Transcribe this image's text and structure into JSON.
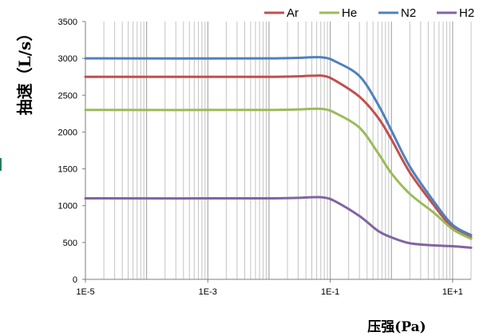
{
  "chart_data": {
    "type": "line",
    "title": "",
    "xlabel": "压强(Pa)",
    "ylabel": "抽速（L/s）",
    "x_scale": "log",
    "xlim": [
      1e-05,
      20
    ],
    "ylim": [
      0,
      3500
    ],
    "x_tick_values": [
      1e-05,
      0.001,
      0.1,
      10
    ],
    "x_tick_labels": [
      "1E-5",
      "1E-3",
      "1E-1",
      "1E+1"
    ],
    "y_ticks": [
      0,
      500,
      1000,
      1500,
      2000,
      2500,
      3000,
      3500
    ],
    "grid": "vertical log minor and major lines",
    "legend_position": "top-right",
    "series": [
      {
        "name": "Ar",
        "color": "#c0504d",
        "x": [
          1e-05,
          0.01,
          0.05,
          0.08,
          0.12,
          0.3,
          0.6,
          1,
          2,
          5,
          10,
          20
        ],
        "y": [
          2750,
          2750,
          2765,
          2760,
          2700,
          2480,
          2200,
          1900,
          1450,
          1000,
          700,
          570
        ]
      },
      {
        "name": "He",
        "color": "#9bbb59",
        "x": [
          1e-05,
          0.01,
          0.05,
          0.08,
          0.12,
          0.3,
          0.6,
          1,
          2,
          5,
          10,
          20
        ],
        "y": [
          2300,
          2300,
          2315,
          2310,
          2260,
          2060,
          1720,
          1440,
          1160,
          900,
          680,
          550
        ]
      },
      {
        "name": "N2",
        "color": "#4f81bd",
        "x": [
          1e-05,
          0.01,
          0.05,
          0.08,
          0.12,
          0.3,
          0.6,
          1,
          2,
          5,
          10,
          20
        ],
        "y": [
          3000,
          3000,
          3015,
          3010,
          2960,
          2760,
          2380,
          2020,
          1530,
          1050,
          740,
          600
        ]
      },
      {
        "name": "H2",
        "color": "#8064a2",
        "x": [
          1e-05,
          0.01,
          0.05,
          0.08,
          0.12,
          0.3,
          0.6,
          1,
          2,
          5,
          10,
          20
        ],
        "y": [
          1100,
          1100,
          1115,
          1110,
          1060,
          860,
          660,
          570,
          490,
          460,
          450,
          430
        ]
      }
    ]
  }
}
